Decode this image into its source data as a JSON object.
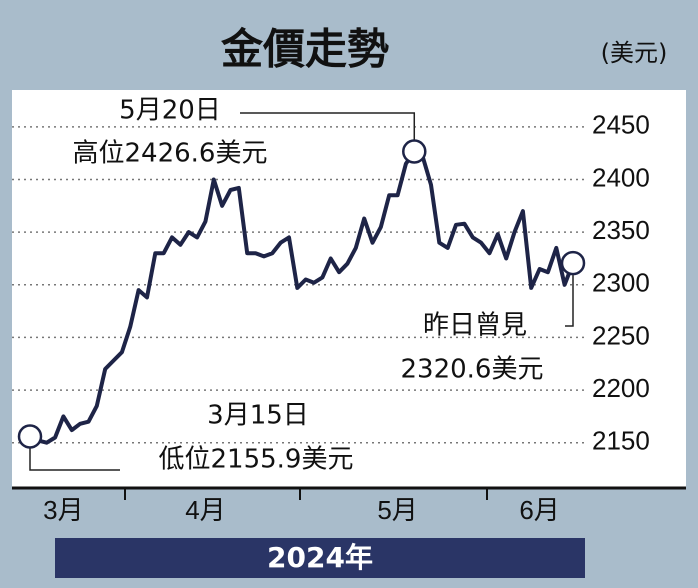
{
  "chart_data": {
    "type": "line",
    "title": "金價走勢",
    "y_unit": "(美元)",
    "x_label": "2024年",
    "categories": [
      null,
      null,
      null,
      null,
      "3月",
      null,
      null,
      null,
      null,
      null,
      null,
      null,
      null,
      null,
      null,
      null,
      null,
      null,
      null,
      null,
      null,
      "4月",
      null,
      null,
      null,
      null,
      null,
      null,
      null,
      null,
      null,
      null,
      null,
      null,
      null,
      null,
      null,
      null,
      null,
      null,
      null,
      null,
      null,
      null,
      "5月",
      null,
      null,
      null,
      null,
      null,
      null,
      null,
      null,
      null,
      null,
      null,
      null,
      null,
      null,
      null,
      null,
      "6月",
      null,
      null,
      null,
      null
    ],
    "series": [
      {
        "name": "金價",
        "color": "#1e2447",
        "values": [
          2155.9,
          2152,
          2150,
          2155,
          2175,
          2162,
          2168,
          2170,
          2185,
          2220,
          2228,
          2236,
          2260,
          2295,
          2288,
          2330,
          2330,
          2345,
          2338,
          2350,
          2345,
          2360,
          2400,
          2375,
          2390,
          2392,
          2330,
          2330,
          2327,
          2330,
          2340,
          2345,
          2297,
          2305,
          2302,
          2307,
          2325,
          2312,
          2320,
          2335,
          2363,
          2340,
          2355,
          2385,
          2385,
          2415,
          2426.6,
          2422,
          2395,
          2340,
          2335,
          2357,
          2358,
          2345,
          2340,
          2330,
          2348,
          2325,
          2350,
          2370,
          2297,
          2315,
          2312,
          2335,
          2300,
          2320.6
        ]
      }
    ],
    "ylim": [
      2107,
      2485
    ],
    "yticks": [
      2150,
      2200,
      2250,
      2300,
      2350,
      2400,
      2450
    ],
    "grid": true,
    "annotations": [
      "5月20日",
      "高位2426.6美元",
      "3月15日",
      "低位2155.9美元",
      "昨日曾見",
      "2320.6美元"
    ]
  }
}
